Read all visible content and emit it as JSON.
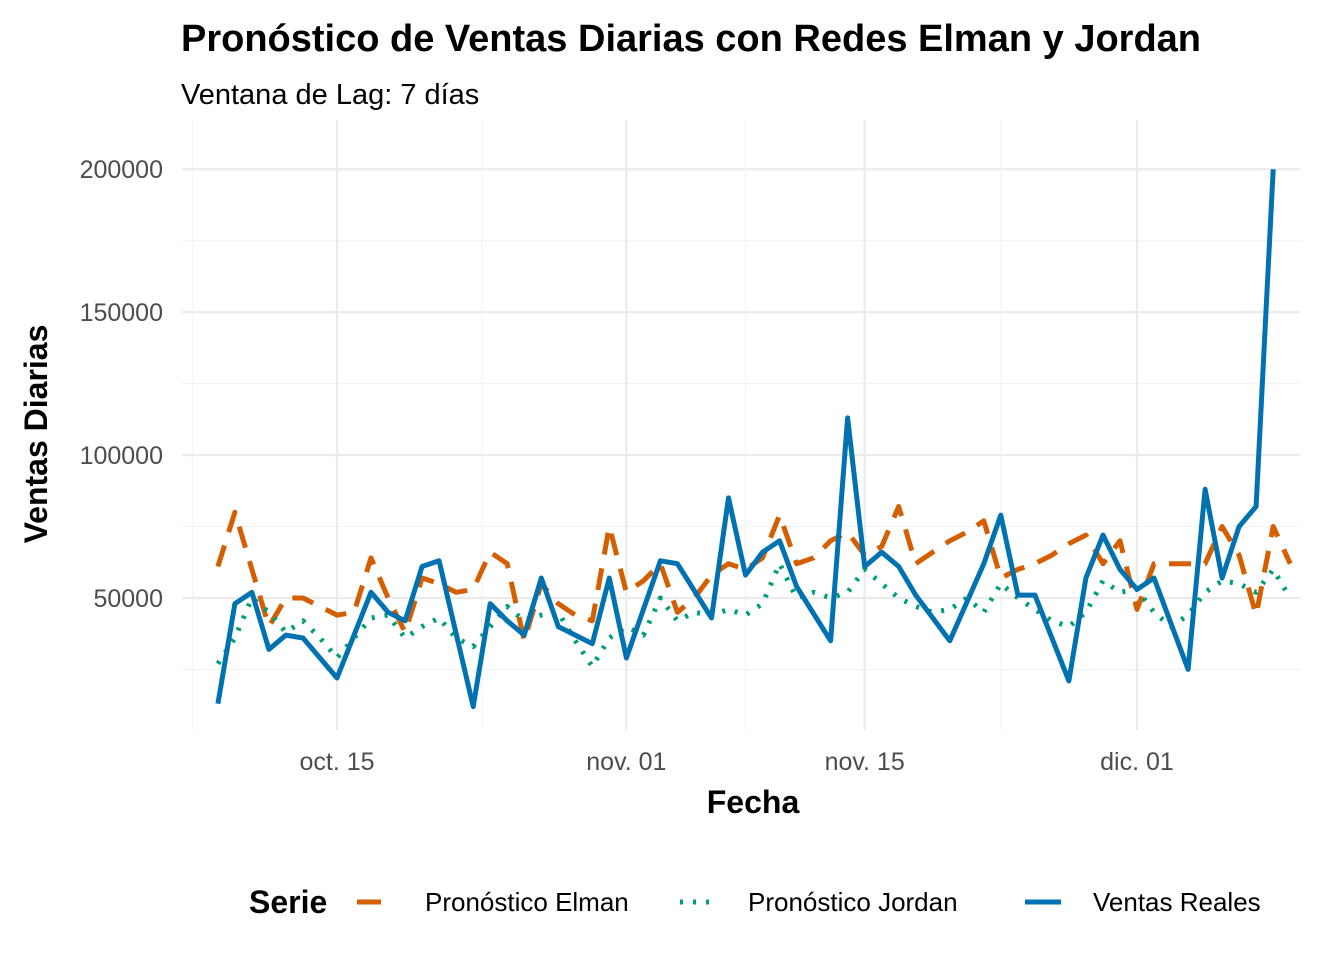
{
  "chart_data": {
    "type": "line",
    "title": "Pronóstico de Ventas Diarias con Redes Elman y Jordan",
    "subtitle": "Ventana de Lag: 7 días",
    "xlabel": "Fecha",
    "ylabel": "Ventas Diarias",
    "ylim": [
      0,
      210000
    ],
    "yticks": [
      50000,
      100000,
      150000,
      200000
    ],
    "ytick_labels": [
      "50000",
      "100000",
      "150000",
      "200000"
    ],
    "xticks": [
      "2024-10-15",
      "2024-11-01",
      "2024-11-15",
      "2024-12-01"
    ],
    "xtick_labels": [
      "oct. 15",
      "nov. 01",
      "nov. 15",
      "dic. 01"
    ],
    "grid": true,
    "legend_position": "bottom",
    "legend_title": "Serie",
    "series": [
      {
        "name": "Pronóstico Elman",
        "color": "#D55E00",
        "style": "dashed",
        "points": [
          [
            "2024-10-08",
            61000
          ],
          [
            "2024-10-09",
            80000
          ],
          [
            "2024-10-10",
            60000
          ],
          [
            "2024-10-11",
            40000
          ],
          [
            "2024-10-12",
            50000
          ],
          [
            "2024-10-13",
            50000
          ],
          [
            "2024-10-14",
            47000
          ],
          [
            "2024-10-15",
            44000
          ],
          [
            "2024-10-16",
            45000
          ],
          [
            "2024-10-17",
            64000
          ],
          [
            "2024-10-18",
            50000
          ],
          [
            "2024-10-19",
            38000
          ],
          [
            "2024-10-20",
            57000
          ],
          [
            "2024-10-21",
            55000
          ],
          [
            "2024-10-22",
            52000
          ],
          [
            "2024-10-23",
            53000
          ],
          [
            "2024-10-24",
            66000
          ],
          [
            "2024-10-25",
            62000
          ],
          [
            "2024-10-26",
            35000
          ],
          [
            "2024-10-27",
            55000
          ],
          [
            "2024-10-28",
            48000
          ],
          [
            "2024-10-29",
            44000
          ],
          [
            "2024-10-30",
            42000
          ],
          [
            "2024-10-31",
            75000
          ],
          [
            "2024-11-01",
            52000
          ],
          [
            "2024-11-02",
            56000
          ],
          [
            "2024-11-03",
            62000
          ],
          [
            "2024-11-04",
            45000
          ],
          [
            "2024-11-05",
            50000
          ],
          [
            "2024-11-06",
            58000
          ],
          [
            "2024-11-07",
            62000
          ],
          [
            "2024-11-08",
            60000
          ],
          [
            "2024-11-09",
            64000
          ],
          [
            "2024-11-10",
            79000
          ],
          [
            "2024-11-11",
            62000
          ],
          [
            "2024-11-12",
            64000
          ],
          [
            "2024-11-13",
            70000
          ],
          [
            "2024-11-14",
            73000
          ],
          [
            "2024-11-15",
            65000
          ],
          [
            "2024-11-16",
            68000
          ],
          [
            "2024-11-17",
            82000
          ],
          [
            "2024-11-18",
            62000
          ],
          [
            "2024-11-19",
            66000
          ],
          [
            "2024-11-20",
            70000
          ],
          [
            "2024-11-21",
            73000
          ],
          [
            "2024-11-22",
            77000
          ],
          [
            "2024-11-23",
            57000
          ],
          [
            "2024-11-24",
            60000
          ],
          [
            "2024-11-25",
            62000
          ],
          [
            "2024-11-26",
            65000
          ],
          [
            "2024-11-27",
            69000
          ],
          [
            "2024-11-28",
            72000
          ],
          [
            "2024-11-29",
            62000
          ],
          [
            "2024-11-30",
            70000
          ],
          [
            "2024-12-01",
            46000
          ],
          [
            "2024-12-02",
            62000
          ],
          [
            "2024-12-03",
            62000
          ],
          [
            "2024-12-04",
            62000
          ],
          [
            "2024-12-05",
            62000
          ],
          [
            "2024-12-06",
            75000
          ],
          [
            "2024-12-07",
            65000
          ],
          [
            "2024-12-08",
            44000
          ],
          [
            "2024-12-09",
            75000
          ],
          [
            "2024-12-10",
            62000
          ]
        ]
      },
      {
        "name": "Pronóstico Jordan",
        "color": "#009E73",
        "style": "dotted",
        "points": [
          [
            "2024-10-08",
            27000
          ],
          [
            "2024-10-09",
            36000
          ],
          [
            "2024-10-10",
            50000
          ],
          [
            "2024-10-11",
            45000
          ],
          [
            "2024-10-12",
            38000
          ],
          [
            "2024-10-13",
            42000
          ],
          [
            "2024-10-14",
            36000
          ],
          [
            "2024-10-15",
            29000
          ],
          [
            "2024-10-16",
            36000
          ],
          [
            "2024-10-17",
            43000
          ],
          [
            "2024-10-18",
            44000
          ],
          [
            "2024-10-19",
            36000
          ],
          [
            "2024-10-20",
            40000
          ],
          [
            "2024-10-21",
            43000
          ],
          [
            "2024-10-22",
            36000
          ],
          [
            "2024-10-23",
            33000
          ],
          [
            "2024-10-24",
            40000
          ],
          [
            "2024-10-25",
            47000
          ],
          [
            "2024-10-26",
            42000
          ],
          [
            "2024-10-27",
            44000
          ],
          [
            "2024-10-28",
            45000
          ],
          [
            "2024-10-29",
            35000
          ],
          [
            "2024-10-30",
            26000
          ],
          [
            "2024-10-31",
            36000
          ],
          [
            "2024-11-01",
            40000
          ],
          [
            "2024-11-02",
            37000
          ],
          [
            "2024-11-03",
            50000
          ],
          [
            "2024-11-04",
            42000
          ],
          [
            "2024-11-05",
            45000
          ],
          [
            "2024-11-06",
            44000
          ],
          [
            "2024-11-07",
            46000
          ],
          [
            "2024-11-08",
            44000
          ],
          [
            "2024-11-09",
            48000
          ],
          [
            "2024-11-10",
            62000
          ],
          [
            "2024-11-11",
            50000
          ],
          [
            "2024-11-12",
            52000
          ],
          [
            "2024-11-13",
            50000
          ],
          [
            "2024-11-14",
            52000
          ],
          [
            "2024-11-15",
            60000
          ],
          [
            "2024-11-16",
            55000
          ],
          [
            "2024-11-17",
            50000
          ],
          [
            "2024-11-18",
            47000
          ],
          [
            "2024-11-19",
            45000
          ],
          [
            "2024-11-20",
            46000
          ],
          [
            "2024-11-21",
            50000
          ],
          [
            "2024-11-22",
            45000
          ],
          [
            "2024-11-23",
            55000
          ],
          [
            "2024-11-24",
            50000
          ],
          [
            "2024-11-25",
            46000
          ],
          [
            "2024-11-26",
            42000
          ],
          [
            "2024-11-27",
            40000
          ],
          [
            "2024-11-28",
            45000
          ],
          [
            "2024-11-29",
            56000
          ],
          [
            "2024-11-30",
            52000
          ],
          [
            "2024-12-01",
            53000
          ],
          [
            "2024-12-02",
            45000
          ],
          [
            "2024-12-03",
            40000
          ],
          [
            "2024-12-04",
            44000
          ],
          [
            "2024-12-05",
            52000
          ],
          [
            "2024-12-06",
            56000
          ],
          [
            "2024-12-07",
            55000
          ],
          [
            "2024-12-08",
            52000
          ],
          [
            "2024-12-09",
            60000
          ],
          [
            "2024-12-10",
            50000
          ]
        ]
      },
      {
        "name": "Ventas Reales",
        "color": "#0072B2",
        "style": "solid",
        "points": [
          [
            "2024-10-08",
            13000
          ],
          [
            "2024-10-09",
            48000
          ],
          [
            "2024-10-10",
            52000
          ],
          [
            "2024-10-11",
            32000
          ],
          [
            "2024-10-12",
            37000
          ],
          [
            "2024-10-13",
            36000
          ],
          [
            "2024-10-15",
            22000
          ],
          [
            "2024-10-17",
            52000
          ],
          [
            "2024-10-18",
            45000
          ],
          [
            "2024-10-19",
            42000
          ],
          [
            "2024-10-20",
            61000
          ],
          [
            "2024-10-21",
            63000
          ],
          [
            "2024-10-23",
            12000
          ],
          [
            "2024-10-24",
            48000
          ],
          [
            "2024-10-25",
            42000
          ],
          [
            "2024-10-26",
            37000
          ],
          [
            "2024-10-27",
            57000
          ],
          [
            "2024-10-28",
            40000
          ],
          [
            "2024-10-30",
            34000
          ],
          [
            "2024-10-31",
            57000
          ],
          [
            "2024-11-01",
            29000
          ],
          [
            "2024-11-03",
            63000
          ],
          [
            "2024-11-04",
            62000
          ],
          [
            "2024-11-06",
            43000
          ],
          [
            "2024-11-07",
            85000
          ],
          [
            "2024-11-08",
            58000
          ],
          [
            "2024-11-09",
            66000
          ],
          [
            "2024-11-10",
            70000
          ],
          [
            "2024-11-11",
            54000
          ],
          [
            "2024-11-13",
            35000
          ],
          [
            "2024-11-14",
            113000
          ],
          [
            "2024-11-15",
            61000
          ],
          [
            "2024-11-16",
            66000
          ],
          [
            "2024-11-17",
            61000
          ],
          [
            "2024-11-18",
            51000
          ],
          [
            "2024-11-20",
            35000
          ],
          [
            "2024-11-22",
            62000
          ],
          [
            "2024-11-23",
            79000
          ],
          [
            "2024-11-24",
            51000
          ],
          [
            "2024-11-25",
            51000
          ],
          [
            "2024-11-27",
            21000
          ],
          [
            "2024-11-28",
            57000
          ],
          [
            "2024-11-29",
            72000
          ],
          [
            "2024-11-30",
            60000
          ],
          [
            "2024-12-01",
            53000
          ],
          [
            "2024-12-02",
            57000
          ],
          [
            "2024-12-04",
            25000
          ],
          [
            "2024-12-05",
            88000
          ],
          [
            "2024-12-06",
            57000
          ],
          [
            "2024-12-07",
            75000
          ],
          [
            "2024-12-08",
            82000
          ],
          [
            "2024-12-09",
            200000
          ]
        ]
      }
    ]
  }
}
